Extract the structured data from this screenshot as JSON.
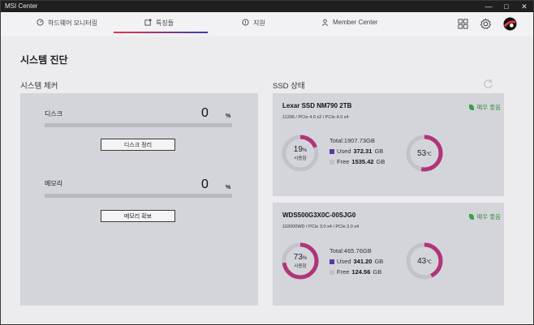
{
  "titlebar": {
    "title": "MSI Center"
  },
  "tabs": [
    {
      "label": "하드웨어 모니터링"
    },
    {
      "label": "특징들"
    },
    {
      "label": "지원"
    },
    {
      "label": "Member Center"
    }
  ],
  "page_title": "시스템 진단",
  "cleaner": {
    "heading": "시스템 체커",
    "disk": {
      "label": "디스크",
      "value": "0",
      "unit": "%",
      "progress": 0,
      "button": "디스크 정리"
    },
    "memory": {
      "label": "메모리",
      "value": "0",
      "unit": "%",
      "progress": 0,
      "button": "메모리 확보"
    }
  },
  "ssd_section": {
    "heading": "SSD 상태"
  },
  "ssds": [
    {
      "name": "Lexar SSD NM790 2TB",
      "meta": "11296 / PCIe 4.0 x2 / PCIe 4.0 x4",
      "status": "매우 좋음",
      "usage_pct": "19",
      "usage_value": 19,
      "pct_unit": "%",
      "usage_sub": "사용함",
      "total": "Total:1907.73GB",
      "used_label": "Used",
      "used_value": "372.31",
      "free_label": "Free",
      "free_value": "1535.42",
      "size_unit": "GB",
      "temp": "53",
      "temp_unit": "℃",
      "temp_value": 53
    },
    {
      "name": "WDS500G3X0C-00SJG0",
      "meta": "102000WD / PCIe 3.0 x4 / PCIe 3.0 x4",
      "status": "매우 좋음",
      "usage_pct": "73",
      "usage_value": 73,
      "pct_unit": "%",
      "usage_sub": "사용함",
      "total": "Total:465.76GB",
      "used_label": "Used",
      "used_value": "341.20",
      "free_label": "Free",
      "free_value": "124.56",
      "size_unit": "GB",
      "temp": "43",
      "temp_unit": "℃",
      "temp_value": 43
    }
  ],
  "colors": {
    "accent_red": "#e3383e",
    "accent_blue": "#3a3ab5",
    "used": "#b0357a",
    "free": "#c2c3c8",
    "ok_green": "#2f8f3e"
  }
}
